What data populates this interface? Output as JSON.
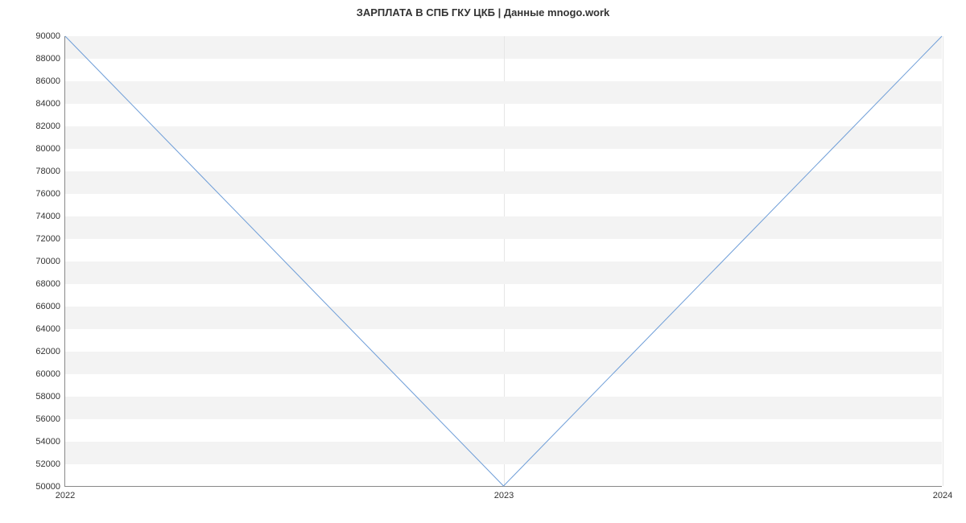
{
  "chart": {
    "type": "line",
    "title": "ЗАРПЛАТА В СПБ ГКУ ЦКБ | Данные mnogo.work",
    "title_fontsize": 13,
    "title_color": "#333333",
    "background_color": "#ffffff",
    "grid_band_color": "#f3f3f3",
    "axis_color": "#888888",
    "x_gridline_color": "#e6e6e6",
    "line_color": "#6f9ed8",
    "line_width": 1,
    "label_fontsize": 11,
    "label_color": "#333333",
    "ylim": [
      50000,
      90000
    ],
    "ytick_step": 2000,
    "y_ticks": [
      50000,
      52000,
      54000,
      56000,
      58000,
      60000,
      62000,
      64000,
      66000,
      68000,
      70000,
      72000,
      74000,
      76000,
      78000,
      80000,
      82000,
      84000,
      86000,
      88000,
      90000
    ],
    "x_categories": [
      "2022",
      "2023",
      "2024"
    ],
    "x_positions": [
      0,
      0.5,
      1
    ],
    "data_x": [
      0,
      0.5,
      1
    ],
    "data_y": [
      90000,
      50000,
      90000
    ]
  }
}
